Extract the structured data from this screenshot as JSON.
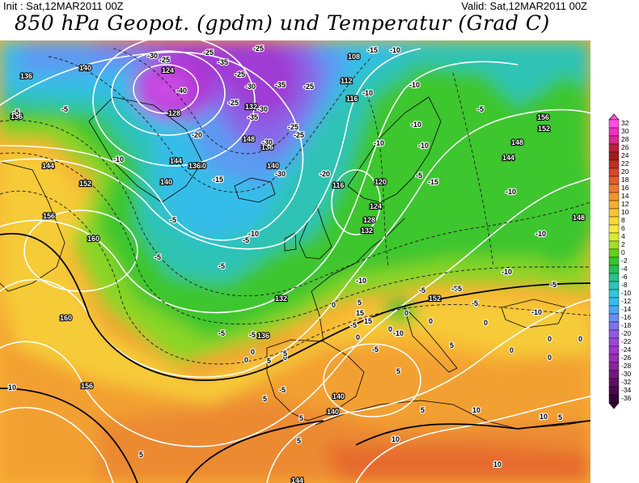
{
  "header": {
    "init": "Init : Sat,12MAR2011 00Z",
    "valid": "Valid: Sat,12MAR2011 00Z",
    "title": "850 hPa Geopot. (gpdm) und Temperatur (Grad C)"
  },
  "legend": {
    "ticks": [
      "32",
      "30",
      "28",
      "26",
      "24",
      "22",
      "20",
      "18",
      "16",
      "14",
      "12",
      "10",
      "8",
      "6",
      "4",
      "2",
      "0",
      "-2",
      "-4",
      "-6",
      "-8",
      "-10",
      "-12",
      "-14",
      "-16",
      "-18",
      "-20",
      "-22",
      "-24",
      "-26",
      "-28",
      "-30",
      "-32",
      "-34",
      "-36"
    ],
    "colors": [
      "#ff50e6",
      "#ee30c0",
      "#d82a8e",
      "#b9213f",
      "#a01c1c",
      "#c23024",
      "#d8472a",
      "#e25d2e",
      "#ea7a30",
      "#f19531",
      "#f5ad33",
      "#f8c335",
      "#fad838",
      "#f3e63e",
      "#d5ec36",
      "#a6dd29",
      "#63d11f",
      "#33c72a",
      "#29be57",
      "#2dbf8a",
      "#2ec5b6",
      "#31c6d8",
      "#36bcef",
      "#4ea5f4",
      "#6a8cf0",
      "#7f73ea",
      "#8e5ce2",
      "#9a47d8",
      "#a136c9",
      "#9b2db5",
      "#8a249c",
      "#74197f",
      "#5c1064",
      "#470a4c",
      "#330535"
    ]
  },
  "map_labels": {
    "geopotential": [
      "140",
      "136",
      "136",
      "128",
      "124",
      "140",
      "144",
      "148",
      "136",
      "136",
      "140",
      "140",
      "144",
      "152",
      "156",
      "160",
      "132",
      "136",
      "160",
      "156",
      "140",
      "140",
      "144",
      "108",
      "112",
      "116",
      "116",
      "120",
      "124",
      "128",
      "132",
      "152",
      "156",
      "152",
      "148",
      "144",
      "148",
      "132"
    ],
    "temperature": [
      "-30",
      "-25",
      "-35",
      "-40",
      "-25",
      "-25",
      "-25",
      "-30",
      "-35",
      "-25",
      "-30",
      "-35",
      "-25",
      "-30",
      "-25",
      "-20",
      "-15",
      "-30",
      "-25",
      "-20",
      "-15",
      "-10",
      "-10",
      "-10",
      "-10",
      "-10",
      "-5",
      "-10",
      "-5",
      "-5",
      "-5",
      "-10",
      "-15",
      "-10",
      "-10",
      "-10",
      "-10",
      "-5",
      "-5",
      "-10",
      "-5",
      "-5",
      "-5",
      "-10",
      "-5",
      "-5",
      "-5",
      "-10",
      "-5",
      "-5",
      "0",
      "0",
      "0",
      "0",
      "0",
      "0",
      "0",
      "0",
      "0",
      "5",
      "5",
      "5",
      "5",
      "5",
      "5",
      "5",
      "5",
      "5",
      "10",
      "10",
      "10",
      "10",
      "10",
      "15",
      "15",
      "0",
      "0",
      "0",
      "0",
      "-5",
      "-5",
      "-5",
      "-5",
      "5",
      "5",
      "0"
    ]
  }
}
